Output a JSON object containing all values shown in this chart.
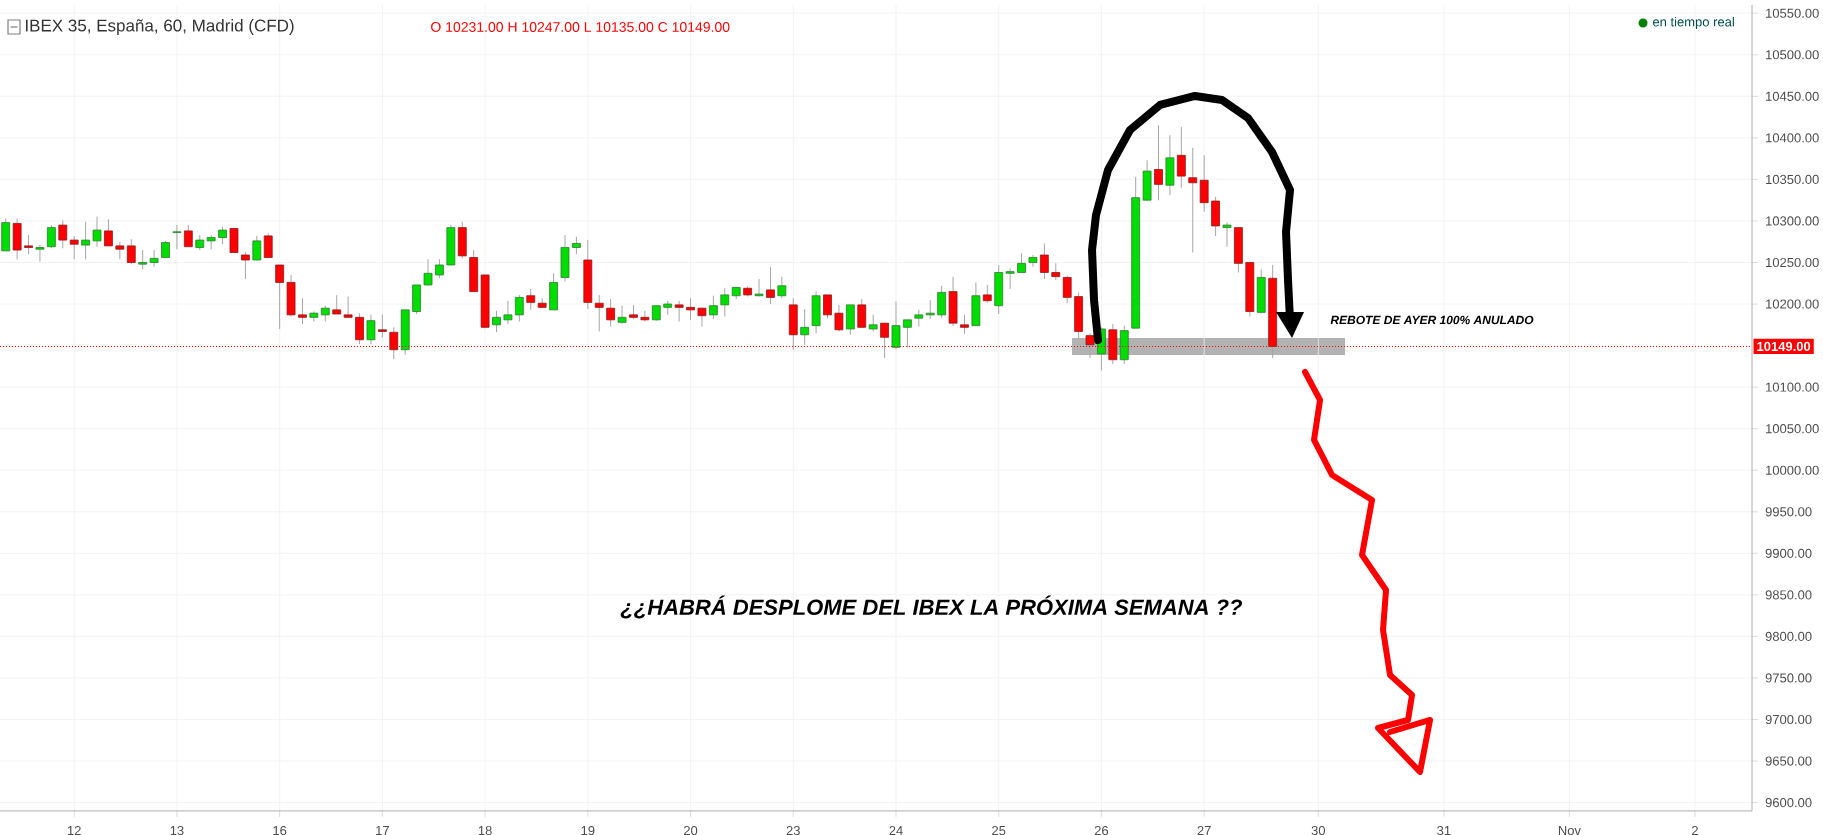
{
  "chart_data": {
    "type": "candlestick",
    "title": "IBEX 35, España, 60, Madrid (CFD)",
    "subtitle": "O 10231.00 H 10247.00 L 10135.00 C 10149.00",
    "annotations": [
      "en tiempo real",
      "REBOTE DE AYER 100% ANULADO",
      "¿¿HABRÁ DESPLOME DEL IBEX LA PRÓXIMA SEMANA ??"
    ],
    "categories": [
      null,
      null,
      null,
      null,
      null,
      null,
      "12",
      null,
      null,
      null,
      null,
      null,
      null,
      null,
      null,
      "13",
      null,
      null,
      null,
      null,
      null,
      null,
      null,
      null,
      "16",
      null,
      null,
      null,
      null,
      null,
      null,
      null,
      null,
      "17",
      null,
      null,
      null,
      null,
      null,
      null,
      null,
      null,
      "18",
      null,
      null,
      null,
      null,
      null,
      null,
      null,
      null,
      "19",
      null,
      null,
      null,
      null,
      null,
      null,
      null,
      null,
      "20",
      null,
      null,
      null,
      null,
      null,
      null,
      null,
      null,
      "23",
      null,
      null,
      null,
      null,
      null,
      null,
      null,
      null,
      "24",
      null,
      null,
      null,
      null,
      null,
      null,
      null,
      null,
      "25",
      null,
      null,
      null,
      null,
      null,
      null,
      null,
      null,
      "26",
      null,
      null,
      null,
      null,
      null,
      null,
      null,
      null,
      "27",
      null,
      null,
      null,
      null,
      null,
      null,
      null,
      null,
      null,
      "30",
      null,
      null,
      null,
      null,
      null,
      null,
      null,
      null,
      null,
      null,
      "31",
      null,
      null,
      null,
      null,
      null,
      null,
      null,
      null,
      null,
      null,
      "Nov",
      null,
      null,
      null,
      null,
      null,
      null,
      null,
      null,
      null,
      null,
      "2",
      null,
      null,
      null,
      null
    ],
    "ohlc": [
      [
        10264,
        10303,
        10264,
        10298
      ],
      [
        10297,
        10303,
        10254,
        10265
      ],
      [
        10270,
        10283,
        10260,
        10268
      ],
      [
        10266,
        10271,
        10251,
        10268
      ],
      [
        10269,
        10295,
        10267,
        10292
      ],
      [
        10295,
        10301,
        10267,
        10277
      ],
      [
        10277,
        10282,
        10254,
        10272
      ],
      [
        10271,
        10299,
        10254,
        10277
      ],
      [
        10276,
        10305,
        10269,
        10289
      ],
      [
        10288,
        10302,
        10270,
        10270
      ],
      [
        10270,
        10275,
        10254,
        10266
      ],
      [
        10270,
        10278,
        10248,
        10250
      ],
      [
        10248,
        10265,
        10242,
        10250
      ],
      [
        10250,
        10265,
        10245,
        10255
      ],
      [
        10256,
        10276,
        10255,
        10274
      ],
      [
        10286,
        10295,
        10266,
        10287
      ],
      [
        10288,
        10295,
        10269,
        10269
      ],
      [
        10268,
        10283,
        10265,
        10277
      ],
      [
        10276,
        10283,
        10266,
        10280
      ],
      [
        10280,
        10293,
        10272,
        10289
      ],
      [
        10291,
        10291,
        10262,
        10262
      ],
      [
        10259,
        10263,
        10230,
        10253
      ],
      [
        10253,
        10282,
        10253,
        10276
      ],
      [
        10282,
        10285,
        10256,
        10256
      ],
      [
        10247,
        10247,
        10170,
        10226
      ],
      [
        10226,
        10235,
        10185,
        10187
      ],
      [
        10187,
        10207,
        10176,
        10184
      ],
      [
        10184,
        10191,
        10179,
        10189
      ],
      [
        10187,
        10198,
        10179,
        10195
      ],
      [
        10193,
        10211,
        10188,
        10188
      ],
      [
        10187,
        10209,
        10184,
        10184
      ],
      [
        10184,
        10189,
        10152,
        10157
      ],
      [
        10157,
        10187,
        10152,
        10180
      ],
      [
        10169,
        10187,
        10160,
        10167
      ],
      [
        10166,
        10172,
        10134,
        10145
      ],
      [
        10145,
        10193,
        10139,
        10193
      ],
      [
        10191,
        10223,
        10188,
        10223
      ],
      [
        10223,
        10254,
        10222,
        10237
      ],
      [
        10235,
        10254,
        10231,
        10247
      ],
      [
        10247,
        10295,
        10247,
        10292
      ],
      [
        10292,
        10299,
        10255,
        10258
      ],
      [
        10256,
        10265,
        10215,
        10215
      ],
      [
        10235,
        10235,
        10171,
        10172
      ],
      [
        10175,
        10192,
        10166,
        10184
      ],
      [
        10181,
        10204,
        10176,
        10187
      ],
      [
        10187,
        10211,
        10179,
        10208
      ],
      [
        10210,
        10218,
        10193,
        10202
      ],
      [
        10201,
        10207,
        10195,
        10196
      ],
      [
        10193,
        10237,
        10193,
        10226
      ],
      [
        10232,
        10283,
        10227,
        10268
      ],
      [
        10268,
        10281,
        10260,
        10273
      ],
      [
        10253,
        10277,
        10194,
        10202
      ],
      [
        10201,
        10211,
        10167,
        10196
      ],
      [
        10195,
        10206,
        10173,
        10181
      ],
      [
        10178,
        10198,
        10176,
        10184
      ],
      [
        10187,
        10199,
        10182,
        10184
      ],
      [
        10184,
        10192,
        10179,
        10181
      ],
      [
        10181,
        10199,
        10180,
        10198
      ],
      [
        10196,
        10204,
        10187,
        10200
      ],
      [
        10199,
        10204,
        10179,
        10196
      ],
      [
        10196,
        10207,
        10181,
        10193
      ],
      [
        10195,
        10196,
        10173,
        10186
      ],
      [
        10187,
        10210,
        10182,
        10198
      ],
      [
        10199,
        10219,
        10185,
        10211
      ],
      [
        10210,
        10220,
        10206,
        10220
      ],
      [
        10219,
        10221,
        10209,
        10211
      ],
      [
        10210,
        10230,
        10209,
        10212
      ],
      [
        10217,
        10245,
        10200,
        10208
      ],
      [
        10210,
        10233,
        10207,
        10222
      ],
      [
        10199,
        10207,
        10145,
        10163
      ],
      [
        10163,
        10194,
        10151,
        10172
      ],
      [
        10174,
        10215,
        10165,
        10210
      ],
      [
        10211,
        10211,
        10183,
        10187
      ],
      [
        10189,
        10199,
        10167,
        10169
      ],
      [
        10170,
        10199,
        10163,
        10199
      ],
      [
        10199,
        10206,
        10172,
        10172
      ],
      [
        10170,
        10187,
        10167,
        10175
      ],
      [
        10177,
        10177,
        10135,
        10160
      ],
      [
        10148,
        10203,
        10145,
        10174
      ],
      [
        10172,
        10181,
        10148,
        10181
      ],
      [
        10183,
        10193,
        10173,
        10187
      ],
      [
        10187,
        10205,
        10182,
        10189
      ],
      [
        10187,
        10222,
        10183,
        10214
      ],
      [
        10215,
        10233,
        10174,
        10177
      ],
      [
        10175,
        10187,
        10164,
        10172
      ],
      [
        10174,
        10226,
        10174,
        10210
      ],
      [
        10211,
        10223,
        10202,
        10204
      ],
      [
        10198,
        10247,
        10188,
        10238
      ],
      [
        10237,
        10243,
        10218,
        10239
      ],
      [
        10238,
        10261,
        10238,
        10249
      ],
      [
        10250,
        10259,
        10245,
        10256
      ],
      [
        10259,
        10273,
        10230,
        10238
      ],
      [
        10238,
        10249,
        10229,
        10233
      ],
      [
        10232,
        10234,
        10201,
        10208
      ],
      [
        10209,
        10214,
        10158,
        10167
      ],
      [
        10162,
        10165,
        10135,
        10151
      ],
      [
        10140,
        10172,
        10120,
        10170
      ],
      [
        10169,
        10176,
        10128,
        10133
      ],
      [
        10133,
        10174,
        10128,
        10168
      ],
      [
        10171,
        10353,
        10171,
        10328
      ],
      [
        10325,
        10373,
        10325,
        10360
      ],
      [
        10362,
        10415,
        10325,
        10344
      ],
      [
        10343,
        10403,
        10331,
        10376
      ],
      [
        10379,
        10413,
        10340,
        10354
      ],
      [
        10352,
        10388,
        10262,
        10346
      ],
      [
        10349,
        10379,
        10311,
        10322
      ],
      [
        10324,
        10329,
        10282,
        10294
      ],
      [
        10292,
        10298,
        10269,
        10295
      ],
      [
        10292,
        10292,
        10238,
        10249
      ],
      [
        10250,
        10250,
        10185,
        10191
      ],
      [
        10190,
        10242,
        10189,
        10232
      ],
      [
        10231,
        10247,
        10135,
        10149
      ],
      null,
      null,
      null,
      null,
      null,
      null,
      null,
      null,
      null,
      null,
      null,
      null,
      null,
      null,
      null,
      null,
      null,
      null,
      null,
      null,
      null,
      null,
      null,
      null,
      null,
      null,
      null,
      null,
      null,
      null,
      null,
      null,
      null,
      null,
      null,
      null,
      null,
      null,
      null,
      null,
      null
    ],
    "ylim": [
      9590,
      10560
    ],
    "yticks": [
      {
        "value": 9600,
        "label": "9600.00"
      },
      {
        "value": 9650,
        "label": "9650.00"
      },
      {
        "value": 9700,
        "label": "9700.00"
      },
      {
        "value": 9750,
        "label": "9750.00"
      },
      {
        "value": 9800,
        "label": "9800.00"
      },
      {
        "value": 9850,
        "label": "9850.00"
      },
      {
        "value": 9900,
        "label": "9900.00"
      },
      {
        "value": 9950,
        "label": "9950.00"
      },
      {
        "value": 10000,
        "label": "10000.00"
      },
      {
        "value": 10050,
        "label": "10050.00"
      },
      {
        "value": 10100,
        "label": "10100.00"
      },
      {
        "value": 10200,
        "label": "10200.00"
      },
      {
        "value": 10250,
        "label": "10250.00"
      },
      {
        "value": 10300,
        "label": "10300.00"
      },
      {
        "value": 10350,
        "label": "10350.00"
      },
      {
        "value": 10400,
        "label": "10400.00"
      },
      {
        "value": 10450,
        "label": "10450.00"
      },
      {
        "value": 10500,
        "label": "10500.00"
      },
      {
        "value": 10550,
        "label": "10550.00"
      }
    ],
    "ref_lines": [
      {
        "axis": "y",
        "value": 10149,
        "label": "10149.00",
        "color": "#ff0000",
        "line_style": "dotted"
      }
    ],
    "grid": true
  }
}
